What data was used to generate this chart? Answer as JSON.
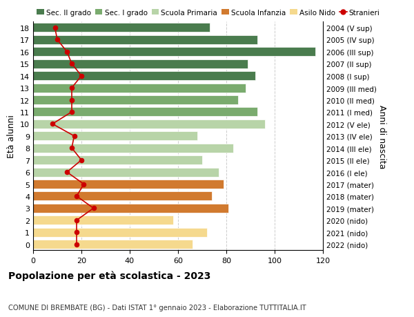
{
  "ages": [
    18,
    17,
    16,
    15,
    14,
    13,
    12,
    11,
    10,
    9,
    8,
    7,
    6,
    5,
    4,
    3,
    2,
    1,
    0
  ],
  "years": [
    "2004 (V sup)",
    "2005 (IV sup)",
    "2006 (III sup)",
    "2007 (II sup)",
    "2008 (I sup)",
    "2009 (III med)",
    "2010 (II med)",
    "2011 (I med)",
    "2012 (V ele)",
    "2013 (IV ele)",
    "2014 (III ele)",
    "2015 (II ele)",
    "2016 (I ele)",
    "2017 (mater)",
    "2018 (mater)",
    "2019 (mater)",
    "2020 (nido)",
    "2021 (nido)",
    "2022 (nido)"
  ],
  "bar_values": [
    73,
    93,
    117,
    89,
    92,
    88,
    85,
    93,
    96,
    68,
    83,
    70,
    77,
    79,
    74,
    81,
    58,
    72,
    66
  ],
  "stranieri": [
    9,
    10,
    14,
    16,
    20,
    16,
    16,
    16,
    8,
    17,
    16,
    20,
    14,
    21,
    18,
    25,
    18,
    18,
    18
  ],
  "bar_colors": [
    "#4a7c4e",
    "#4a7c4e",
    "#4a7c4e",
    "#4a7c4e",
    "#4a7c4e",
    "#7aab6e",
    "#7aab6e",
    "#7aab6e",
    "#b8d4a8",
    "#b8d4a8",
    "#b8d4a8",
    "#b8d4a8",
    "#b8d4a8",
    "#d17a2f",
    "#d17a2f",
    "#d17a2f",
    "#f5d98e",
    "#f5d98e",
    "#f5d98e"
  ],
  "legend_labels": [
    "Sec. II grado",
    "Sec. I grado",
    "Scuola Primaria",
    "Scuola Infanzia",
    "Asilo Nido",
    "Stranieri"
  ],
  "legend_colors": [
    "#4a7c4e",
    "#7aab6e",
    "#b8d4a8",
    "#d17a2f",
    "#f5d98e",
    "#cc0000"
  ],
  "ylabel_left": "Età alunni",
  "ylabel_right": "Anni di nascita",
  "xlim": [
    0,
    120
  ],
  "xticks": [
    0,
    20,
    40,
    60,
    80,
    100,
    120
  ],
  "title": "Popolazione per età scolastica - 2023",
  "subtitle": "COMUNE DI BREMBATE (BG) - Dati ISTAT 1° gennaio 2023 - Elaborazione TUTTITALIA.IT",
  "bg_color": "#ffffff",
  "grid_color": "#cccccc",
  "stranieri_color": "#cc0000",
  "bar_height": 0.75
}
